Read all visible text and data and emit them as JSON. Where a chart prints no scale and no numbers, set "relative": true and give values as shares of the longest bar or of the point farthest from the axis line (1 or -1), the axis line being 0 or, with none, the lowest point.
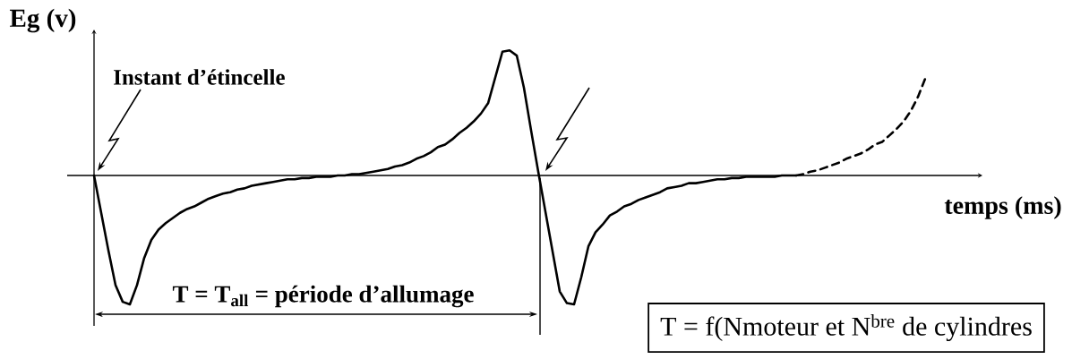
{
  "chart_data": {
    "type": "line",
    "ylabel": "Eg (v)",
    "xlabel": "temps (ms)",
    "relative": true,
    "marker": "none",
    "categories": [
      null,
      null,
      null,
      null,
      null,
      null,
      null,
      null,
      null,
      null,
      null,
      null,
      null,
      null,
      null,
      null,
      null,
      null,
      null,
      null,
      null,
      null,
      null,
      null,
      null,
      null,
      null,
      null,
      null,
      null,
      null,
      null,
      null,
      null,
      null,
      null,
      null,
      null,
      null,
      null,
      null,
      null,
      null,
      null,
      null,
      null,
      null,
      null,
      null,
      null,
      null,
      null,
      null,
      null,
      null,
      null,
      null,
      null,
      null,
      null,
      null,
      null,
      null,
      null,
      null,
      null,
      null,
      null,
      null,
      null,
      null,
      null,
      null,
      null,
      null,
      null,
      null,
      null,
      null,
      null,
      null,
      null,
      null,
      null,
      null,
      null,
      null,
      null,
      null,
      null,
      null,
      null,
      null,
      null,
      null,
      null,
      null,
      null,
      null,
      null,
      null,
      null,
      null,
      null,
      null,
      null,
      null,
      null,
      null,
      null,
      null,
      null,
      null,
      null,
      null,
      null,
      null
    ],
    "series": [
      {
        "color": "#000000",
        "line_style": "solid",
        "values": [
          0,
          -0.29,
          -0.58,
          -0.85,
          -0.98,
          -1,
          -0.85,
          -0.64,
          -0.5,
          -0.42,
          -0.37,
          -0.33,
          -0.29,
          -0.26,
          -0.24,
          -0.21,
          -0.18,
          -0.16,
          -0.14,
          -0.13,
          -0.11,
          -0.1,
          -0.08,
          -0.07,
          -0.06,
          -0.05,
          -0.04,
          -0.03,
          -0.03,
          -0.02,
          -0.02,
          -0.01,
          -0.01,
          -0.01,
          0,
          0,
          0.01,
          0.01,
          0.02,
          0.03,
          0.04,
          0.05,
          0.07,
          0.08,
          0.1,
          0.13,
          0.15,
          0.18,
          0.22,
          0.24,
          0.28,
          0.33,
          0.37,
          0.42,
          0.48,
          0.56,
          0.76,
          0.96,
          0.97,
          0.93,
          0.68,
          0.35,
          0.03,
          -0.28,
          -0.59,
          -0.9,
          -0.99,
          -1,
          -0.79,
          -0.55,
          -0.44,
          -0.38,
          -0.31,
          -0.28,
          -0.24,
          -0.22,
          -0.19,
          -0.17,
          -0.15,
          -0.13,
          -0.1,
          -0.09,
          -0.08,
          -0.06,
          -0.06,
          -0.05,
          -0.04,
          -0.03,
          -0.03,
          -0.02,
          -0.02,
          -0.01,
          -0.01,
          -0.01,
          -0.01,
          -0.01,
          0,
          0,
          0,
          null,
          null,
          null,
          null,
          null,
          null,
          null,
          null,
          null,
          null,
          null,
          null,
          null,
          null,
          null,
          null,
          null,
          null
        ]
      },
      {
        "color": "#000000",
        "line_style": "dashed",
        "values": [
          null,
          null,
          null,
          null,
          null,
          null,
          null,
          null,
          null,
          null,
          null,
          null,
          null,
          null,
          null,
          null,
          null,
          null,
          null,
          null,
          null,
          null,
          null,
          null,
          null,
          null,
          null,
          null,
          null,
          null,
          null,
          null,
          null,
          null,
          null,
          null,
          null,
          null,
          null,
          null,
          null,
          null,
          null,
          null,
          null,
          null,
          null,
          null,
          null,
          null,
          null,
          null,
          null,
          null,
          null,
          null,
          null,
          null,
          null,
          null,
          null,
          null,
          null,
          null,
          null,
          null,
          null,
          null,
          null,
          null,
          null,
          null,
          null,
          null,
          null,
          null,
          null,
          null,
          null,
          null,
          null,
          null,
          null,
          null,
          null,
          null,
          null,
          null,
          null,
          null,
          null,
          null,
          null,
          null,
          null,
          null,
          null,
          null,
          0,
          0.01,
          0.03,
          0.04,
          0.06,
          0.08,
          0.1,
          0.13,
          0.15,
          0.17,
          0.2,
          0.24,
          0.26,
          0.31,
          0.36,
          0.42,
          0.5,
          0.61,
          0.75
        ]
      }
    ],
    "annotations": [
      "Instant d’étincelle",
      "T = T$_{all}$ = période d’allumage",
      "T = f(Nmoteur et N$^{bre}$ de cylindres"
    ]
  }
}
